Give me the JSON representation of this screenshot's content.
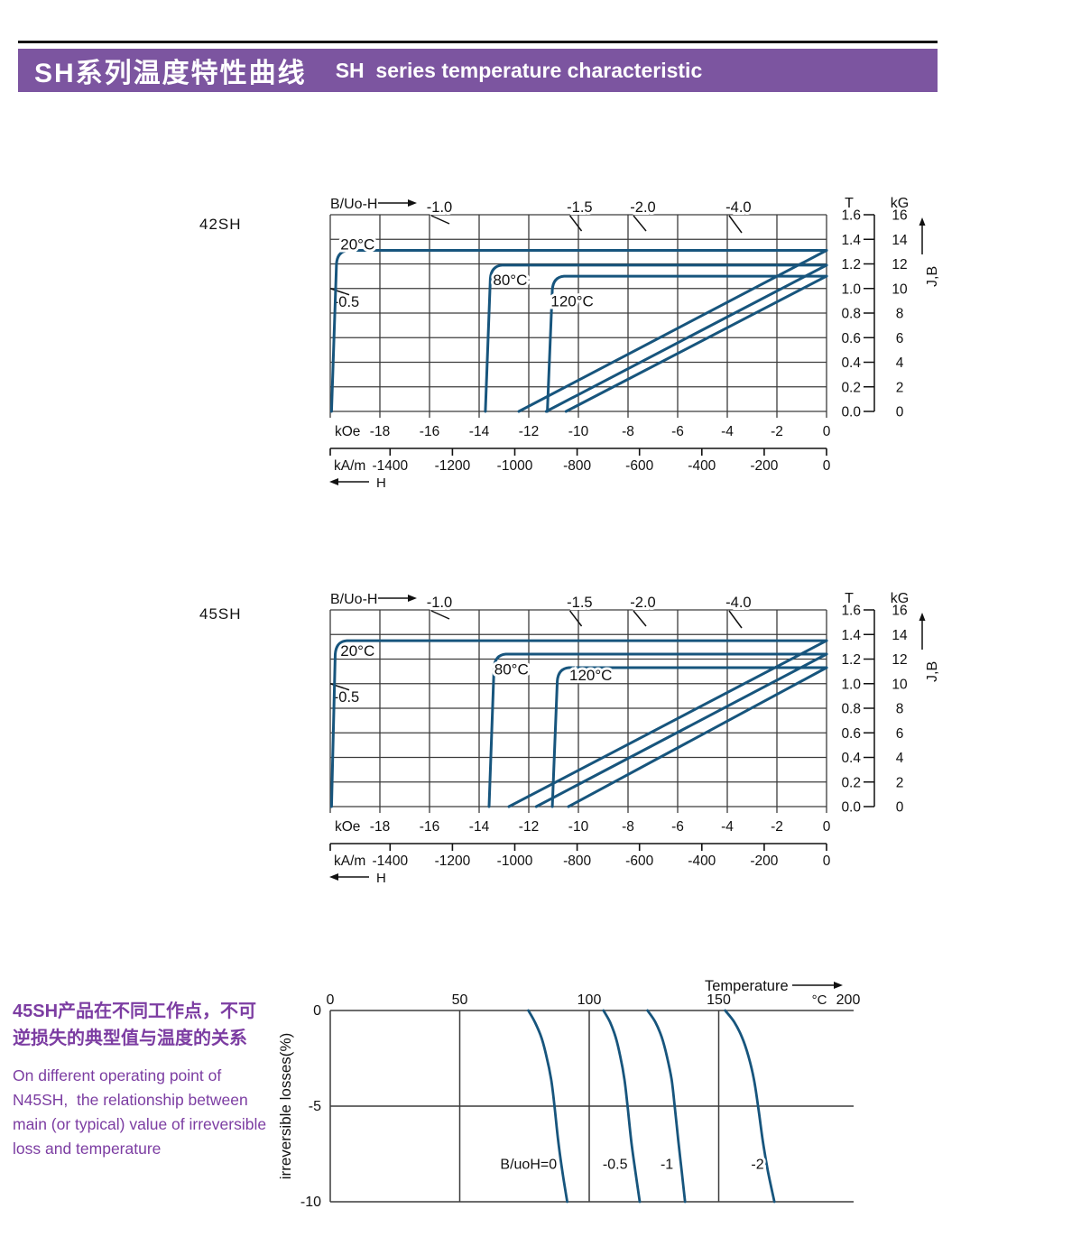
{
  "header": {
    "title_zh": "SH系列温度特性曲线",
    "title_en": "SH  series temperature characteristic",
    "bar_color": "#7c55a0",
    "rule_color": "#151515",
    "text_color": "#ffffff"
  },
  "colors": {
    "curve": "#17557d",
    "grid": "#3c3c3c",
    "text": "#111111",
    "note": "#7c3da2"
  },
  "labels": {
    "chart1_name": "42SH",
    "chart2_name": "45SH"
  },
  "side_note": {
    "zh": [
      "45SH产品在不同工作点，不可",
      "逆损失的典型值与温度的关系"
    ],
    "en": [
      "On different operating point of",
      "N45SH,  the relationship between",
      "main (or typical) value of irreversible",
      "loss and temperature"
    ]
  },
  "chart_data": [
    {
      "type": "line",
      "id": "demag-42SH",
      "title": "42SH demagnetization curves (J-H and B-H) at 20, 80, 120 °C",
      "xlim_kOe": [
        -20,
        0
      ],
      "ylim_T": [
        0,
        1.6
      ],
      "x_ticks_kOe": [
        -18,
        -16,
        -14,
        -12,
        -10,
        -8,
        -6,
        -4,
        -2,
        0
      ],
      "x_ticks_kAm": [
        -1400,
        -1200,
        -1000,
        -800,
        -600,
        -400,
        -200,
        0
      ],
      "y_ticks_T": [
        "1.6",
        "1.4",
        "1.2",
        "1.0",
        "0.8",
        "0.6",
        "0.4",
        "0.2",
        "0.0"
      ],
      "y_ticks_kG": [
        "16",
        "14",
        "12",
        "10",
        "8",
        "6",
        "4",
        "2",
        "0"
      ],
      "axis": {
        "top_label": "B/Uo-H",
        "x_unit_1": "kOe",
        "x_unit_2": "kA/m",
        "h_label": "H",
        "y_unit_1": "T",
        "y_unit_2": "kG",
        "y_axis_label": "J,B"
      },
      "load_lines_top": [
        {
          "label": "-1.0",
          "H_cross_kOe": -16,
          "label_H_kOe": -15.6
        },
        {
          "label": "-1.5",
          "H_cross_kOe": -10.67,
          "label_H_kOe": -9.95
        },
        {
          "label": "-2.0",
          "H_cross_kOe": -8,
          "label_H_kOe": -7.4
        },
        {
          "label": "-4.0",
          "H_cross_kOe": -4,
          "label_H_kOe": -3.55
        }
      ],
      "load_line_left": {
        "label": "-0.5",
        "B_cross_T": 1.0,
        "label_B_T": 0.888
      },
      "series": [
        {
          "name": "20°C",
          "Br_T": 1.31,
          "knee_kOe": -19.75,
          "HcJ_kOe": -19.95,
          "HcB_kOe": -12.4,
          "label_H_kOe": -18.9,
          "label_B_T": 1.36
        },
        {
          "name": "80°C",
          "Br_T": 1.19,
          "knee_kOe": -13.55,
          "HcJ_kOe": -13.75,
          "HcB_kOe": -11.3,
          "label_H_kOe": -12.75,
          "label_B_T": 1.07
        },
        {
          "name": "120°C",
          "Br_T": 1.1,
          "knee_kOe": -11.05,
          "HcJ_kOe": -11.25,
          "HcB_kOe": -10.5,
          "label_H_kOe": -10.25,
          "label_B_T": 0.9
        }
      ]
    },
    {
      "type": "line",
      "id": "demag-45SH",
      "title": "45SH demagnetization curves (J-H and B-H) at 20, 80, 120 °C",
      "xlim_kOe": [
        -20,
        0
      ],
      "ylim_T": [
        0,
        1.6
      ],
      "x_ticks_kOe": [
        -18,
        -16,
        -14,
        -12,
        -10,
        -8,
        -6,
        -4,
        -2,
        0
      ],
      "x_ticks_kAm": [
        -1400,
        -1200,
        -1000,
        -800,
        -600,
        -400,
        -200,
        0
      ],
      "y_ticks_T": [
        "1.6",
        "1.4",
        "1.2",
        "1.0",
        "0.8",
        "0.6",
        "0.4",
        "0.2",
        "0.0"
      ],
      "y_ticks_kG": [
        "16",
        "14",
        "12",
        "10",
        "8",
        "6",
        "4",
        "2",
        "0"
      ],
      "axis": {
        "top_label": "B/Uo-H",
        "x_unit_1": "kOe",
        "x_unit_2": "kA/m",
        "h_label": "H",
        "y_unit_1": "T",
        "y_unit_2": "kG",
        "y_axis_label": "J,B"
      },
      "load_lines_top": [
        {
          "label": "-1.0",
          "H_cross_kOe": -16,
          "label_H_kOe": -15.6
        },
        {
          "label": "-1.5",
          "H_cross_kOe": -10.67,
          "label_H_kOe": -9.95
        },
        {
          "label": "-2.0",
          "H_cross_kOe": -8,
          "label_H_kOe": -7.4
        },
        {
          "label": "-4.0",
          "H_cross_kOe": -4,
          "label_H_kOe": -3.55
        }
      ],
      "load_line_left": {
        "label": "-0.5",
        "B_cross_T": 1.0,
        "label_B_T": 0.888
      },
      "series": [
        {
          "name": "20°C",
          "Br_T": 1.35,
          "knee_kOe": -19.8,
          "HcJ_kOe": -19.95,
          "HcB_kOe": -12.8,
          "label_H_kOe": -18.9,
          "label_B_T": 1.27
        },
        {
          "name": "80°C",
          "Br_T": 1.24,
          "knee_kOe": -13.4,
          "HcJ_kOe": -13.6,
          "HcB_kOe": -11.7,
          "label_H_kOe": -12.7,
          "label_B_T": 1.12
        },
        {
          "name": "120°C",
          "Br_T": 1.13,
          "knee_kOe": -10.85,
          "HcJ_kOe": -11.05,
          "HcB_kOe": -10.4,
          "label_H_kOe": -9.5,
          "label_B_T": 1.07
        }
      ]
    },
    {
      "type": "line",
      "id": "irreversible-loss",
      "title": "Irreversible loss vs temperature for N45SH at different operating points",
      "xlabel": "Temperature",
      "x_unit": "°C",
      "ylabel": "irreversible  losses(%)",
      "xlim": [
        0,
        200
      ],
      "ylim": [
        -10,
        0
      ],
      "x_ticks": [
        0,
        50,
        100,
        150,
        200
      ],
      "y_ticks": [
        "0",
        "-5",
        "-10"
      ],
      "series": [
        {
          "name": "B/uoH=0",
          "label_T": 87.5,
          "label_loss": -8,
          "label_anchor": "end",
          "points": [
            [
              76.5,
              0
            ],
            [
              79,
              -0.6
            ],
            [
              81.5,
              -1.4
            ],
            [
              83.5,
              -2.4
            ],
            [
              85.3,
              -3.6
            ],
            [
              86.6,
              -5
            ],
            [
              88,
              -6.8
            ],
            [
              89.6,
              -8.4
            ],
            [
              91.5,
              -10
            ]
          ]
        },
        {
          "name": "-0.5",
          "label_T": 110,
          "label_loss": -8,
          "label_anchor": "middle",
          "points": [
            [
              105.5,
              0
            ],
            [
              108,
              -0.6
            ],
            [
              110.2,
              -1.4
            ],
            [
              112,
              -2.4
            ],
            [
              113.6,
              -3.6
            ],
            [
              114.8,
              -5
            ],
            [
              116.2,
              -6.8
            ],
            [
              117.8,
              -8.4
            ],
            [
              119.5,
              -10
            ]
          ]
        },
        {
          "name": "-1",
          "label_T": 130,
          "label_loss": -8,
          "label_anchor": "middle",
          "points": [
            [
              122.5,
              0
            ],
            [
              125.5,
              -0.6
            ],
            [
              128,
              -1.4
            ],
            [
              130,
              -2.4
            ],
            [
              131.8,
              -3.6
            ],
            [
              133,
              -5
            ],
            [
              134.4,
              -6.8
            ],
            [
              135.7,
              -8.4
            ],
            [
              137,
              -10
            ]
          ]
        },
        {
          "name": "-2",
          "label_T": 165,
          "label_loss": -8,
          "label_anchor": "middle",
          "points": [
            [
              152.5,
              0
            ],
            [
              156,
              -0.6
            ],
            [
              159,
              -1.4
            ],
            [
              161.5,
              -2.4
            ],
            [
              163.6,
              -3.6
            ],
            [
              165.2,
              -5
            ],
            [
              167,
              -6.8
            ],
            [
              169,
              -8.4
            ],
            [
              171.5,
              -10
            ]
          ]
        }
      ]
    }
  ]
}
